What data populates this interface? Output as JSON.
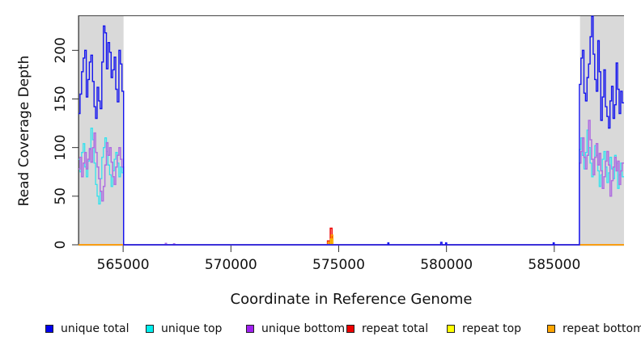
{
  "chart_data": {
    "type": "line",
    "title": "",
    "xlabel": "Coordinate in Reference Genome",
    "ylabel": "Read Coverage Depth",
    "xlim": [
      562930,
      588235
    ],
    "ylim": [
      0,
      236
    ],
    "x_ticks": [
      565000,
      570000,
      575000,
      580000,
      585000
    ],
    "x_tick_labels": [
      "565000",
      "570000",
      "575000",
      "580000",
      "585000"
    ],
    "y_ticks": [
      0,
      50,
      100,
      150,
      200
    ],
    "y_tick_labels": [
      "0",
      "50",
      "100",
      "150",
      "200"
    ],
    "grid": false,
    "legend_position": "bottom",
    "shade_color": "#d9d9d9",
    "frame_color": "#444444",
    "shaded_regions": [
      {
        "x0": 562930,
        "x1": 565020
      },
      {
        "x0": 586165,
        "x1": 588235
      }
    ],
    "legend": [
      {
        "label": "unique total",
        "color": "#0000ee"
      },
      {
        "label": "unique top",
        "color": "#00eeee"
      },
      {
        "label": "unique bottom",
        "color": "#a020f0"
      },
      {
        "label": "repeat total",
        "color": "#ee0000"
      },
      {
        "label": "repeat top",
        "color": "#ffff00"
      },
      {
        "label": "repeat bottom",
        "color": "#ffa500"
      }
    ],
    "series": [
      {
        "name": "repeat-total",
        "label": "repeat total",
        "color": "#ee0000",
        "width": 1.5,
        "points": [
          [
            562930,
            0
          ],
          [
            574480,
            4
          ],
          [
            574550,
            0
          ],
          [
            574610,
            17
          ],
          [
            574690,
            0
          ],
          [
            588235,
            0
          ]
        ]
      },
      {
        "name": "repeat-top",
        "label": "repeat top",
        "color": "#f0e000",
        "width": 1.3,
        "points": [
          [
            562930,
            0
          ],
          [
            574620,
            6
          ],
          [
            574700,
            0
          ],
          [
            588235,
            0
          ]
        ]
      },
      {
        "name": "repeat-bottom",
        "label": "repeat bottom",
        "color": "#ffa500",
        "width": 1.4,
        "points": [
          [
            562930,
            0
          ],
          [
            574500,
            3
          ],
          [
            574560,
            0
          ],
          [
            574650,
            10
          ],
          [
            574730,
            0
          ],
          [
            588235,
            0
          ]
        ]
      },
      {
        "name": "unique-top",
        "label": "unique top",
        "color": "#33e2ee",
        "width": 1.3,
        "points": [
          [
            562930,
            88
          ],
          [
            563002,
            75
          ],
          [
            563074,
            95
          ],
          [
            563146,
            104
          ],
          [
            563218,
            80
          ],
          [
            563290,
            70
          ],
          [
            563362,
            86
          ],
          [
            563434,
            98
          ],
          [
            563506,
            120
          ],
          [
            563578,
            108
          ],
          [
            563650,
            84
          ],
          [
            563722,
            62
          ],
          [
            563794,
            50
          ],
          [
            563866,
            42
          ],
          [
            563938,
            68
          ],
          [
            564010,
            90
          ],
          [
            564082,
            100
          ],
          [
            564154,
            110
          ],
          [
            564226,
            96
          ],
          [
            564298,
            82
          ],
          [
            564370,
            72
          ],
          [
            564442,
            60
          ],
          [
            564514,
            76
          ],
          [
            564586,
            88
          ],
          [
            564658,
            95
          ],
          [
            564730,
            84
          ],
          [
            564802,
            70
          ],
          [
            564874,
            80
          ],
          [
            564946,
            74
          ],
          [
            565020,
            0
          ],
          [
            586165,
            98
          ],
          [
            586236,
            110
          ],
          [
            586307,
            92
          ],
          [
            586378,
            78
          ],
          [
            586449,
            95
          ],
          [
            586520,
            118
          ],
          [
            586591,
            100
          ],
          [
            586662,
            84
          ],
          [
            586733,
            70
          ],
          [
            586804,
            88
          ],
          [
            586875,
            102
          ],
          [
            586946,
            92
          ],
          [
            587017,
            76
          ],
          [
            587088,
            60
          ],
          [
            587159,
            72
          ],
          [
            587230,
            88
          ],
          [
            587301,
            96
          ],
          [
            587372,
            80
          ],
          [
            587443,
            64
          ],
          [
            587514,
            74
          ],
          [
            587585,
            90
          ],
          [
            587656,
            78
          ],
          [
            587727,
            68
          ],
          [
            587798,
            92
          ],
          [
            587869,
            84
          ],
          [
            587940,
            58
          ],
          [
            588011,
            72
          ],
          [
            588082,
            84
          ],
          [
            588153,
            70
          ],
          [
            588235,
            70
          ]
        ]
      },
      {
        "name": "unique-bottom",
        "label": "unique bottom",
        "color": "#b06fe0",
        "width": 1.5,
        "points": [
          [
            562930,
            78
          ],
          [
            563002,
            90
          ],
          [
            563074,
            70
          ],
          [
            563146,
            84
          ],
          [
            563218,
            95
          ],
          [
            563290,
            78
          ],
          [
            563362,
            88
          ],
          [
            563434,
            99
          ],
          [
            563506,
            85
          ],
          [
            563578,
            100
          ],
          [
            563650,
            115
          ],
          [
            563722,
            95
          ],
          [
            563794,
            80
          ],
          [
            563866,
            68
          ],
          [
            563938,
            55
          ],
          [
            564010,
            45
          ],
          [
            564082,
            60
          ],
          [
            564154,
            82
          ],
          [
            564226,
            105
          ],
          [
            564298,
            92
          ],
          [
            564370,
            100
          ],
          [
            564442,
            85
          ],
          [
            564514,
            70
          ],
          [
            564586,
            62
          ],
          [
            564658,
            80
          ],
          [
            564730,
            92
          ],
          [
            564802,
            100
          ],
          [
            564874,
            88
          ],
          [
            564946,
            80
          ],
          [
            565020,
            0
          ],
          [
            566960,
            1.5
          ],
          [
            567010,
            0
          ],
          [
            567340,
            1
          ],
          [
            567390,
            0
          ],
          [
            586165,
            84
          ],
          [
            586236,
            96
          ],
          [
            586307,
            110
          ],
          [
            586378,
            90
          ],
          [
            586449,
            78
          ],
          [
            586520,
            92
          ],
          [
            586591,
            128
          ],
          [
            586662,
            108
          ],
          [
            586733,
            88
          ],
          [
            586804,
            72
          ],
          [
            586875,
            90
          ],
          [
            586946,
            104
          ],
          [
            587017,
            82
          ],
          [
            587088,
            94
          ],
          [
            587159,
            76
          ],
          [
            587230,
            58
          ],
          [
            587301,
            70
          ],
          [
            587372,
            86
          ],
          [
            587443,
            96
          ],
          [
            587514,
            82
          ],
          [
            587585,
            50
          ],
          [
            587656,
            66
          ],
          [
            587727,
            80
          ],
          [
            587798,
            90
          ],
          [
            587869,
            76
          ],
          [
            587940,
            86
          ],
          [
            588011,
            62
          ],
          [
            588082,
            76
          ],
          [
            588153,
            84
          ],
          [
            588235,
            84
          ]
        ]
      },
      {
        "name": "unique-total",
        "label": "unique total",
        "color": "#1414ee",
        "width": 1.4,
        "points": [
          [
            562930,
            135
          ],
          [
            563002,
            155
          ],
          [
            563074,
            178
          ],
          [
            563146,
            192
          ],
          [
            563218,
            200
          ],
          [
            563290,
            152
          ],
          [
            563362,
            170
          ],
          [
            563434,
            188
          ],
          [
            563506,
            195
          ],
          [
            563578,
            168
          ],
          [
            563650,
            142
          ],
          [
            563722,
            130
          ],
          [
            563794,
            162
          ],
          [
            563866,
            148
          ],
          [
            563938,
            140
          ],
          [
            564010,
            188
          ],
          [
            564082,
            225
          ],
          [
            564154,
            218
          ],
          [
            564226,
            181
          ],
          [
            564298,
            208
          ],
          [
            564370,
            198
          ],
          [
            564442,
            172
          ],
          [
            564514,
            180
          ],
          [
            564586,
            193
          ],
          [
            564658,
            160
          ],
          [
            564730,
            147
          ],
          [
            564802,
            200
          ],
          [
            564874,
            186
          ],
          [
            564946,
            158
          ],
          [
            565020,
            0
          ],
          [
            577280,
            2
          ],
          [
            577330,
            0
          ],
          [
            579730,
            2.5
          ],
          [
            579790,
            0
          ],
          [
            579960,
            2
          ],
          [
            580010,
            0
          ],
          [
            584950,
            2
          ],
          [
            585000,
            0
          ],
          [
            586165,
            165
          ],
          [
            586236,
            192
          ],
          [
            586307,
            200
          ],
          [
            586378,
            156
          ],
          [
            586449,
            148
          ],
          [
            586520,
            172
          ],
          [
            586591,
            186
          ],
          [
            586662,
            214
          ],
          [
            586733,
            235
          ],
          [
            586804,
            196
          ],
          [
            586875,
            170
          ],
          [
            586946,
            158
          ],
          [
            587017,
            210
          ],
          [
            587088,
            178
          ],
          [
            587159,
            128
          ],
          [
            587230,
            152
          ],
          [
            587301,
            180
          ],
          [
            587372,
            142
          ],
          [
            587443,
            132
          ],
          [
            587514,
            120
          ],
          [
            587585,
            148
          ],
          [
            587656,
            163
          ],
          [
            587727,
            130
          ],
          [
            587798,
            144
          ],
          [
            587869,
            187
          ],
          [
            587940,
            160
          ],
          [
            588011,
            135
          ],
          [
            588082,
            158
          ],
          [
            588153,
            146
          ],
          [
            588235,
            146
          ]
        ]
      }
    ]
  }
}
